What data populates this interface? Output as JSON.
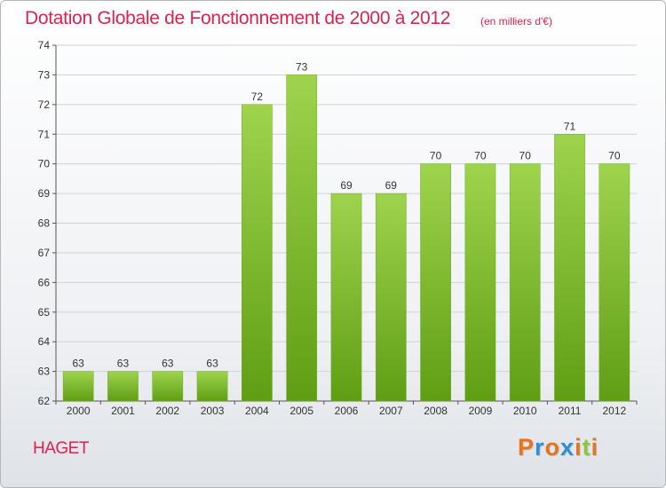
{
  "header": {
    "title": "Dotation Globale de Fonctionnement de 2000 à 2012",
    "unit": "(en milliers d'€)"
  },
  "footer": {
    "commune": "HAGET",
    "logo_letters": [
      "P",
      "r",
      "o",
      "x",
      "i",
      "t",
      "i"
    ],
    "logo_colors": [
      "#e8731c",
      "#2e8fd6",
      "#e8731c",
      "#2e8fd6",
      "#e8731c",
      "#8dc63f",
      "#e8731c"
    ]
  },
  "colors": {
    "title": "#d8244f",
    "bar_top": "#9fd34e",
    "bar_bottom": "#5f9e14",
    "grid": "#cfd3d8",
    "axis": "#555555"
  },
  "chart_data": {
    "type": "bar",
    "title": "Dotation Globale de Fonctionnement de 2000 à 2012",
    "categories": [
      "2000",
      "2001",
      "2002",
      "2003",
      "2004",
      "2005",
      "2006",
      "2007",
      "2008",
      "2009",
      "2010",
      "2011",
      "2012"
    ],
    "values": [
      63,
      63,
      63,
      63,
      72,
      73,
      69,
      69,
      70,
      70,
      70,
      71,
      70
    ],
    "ylim": [
      62,
      74
    ],
    "yticks": [
      62,
      63,
      64,
      65,
      66,
      67,
      68,
      69,
      70,
      71,
      72,
      73,
      74
    ],
    "grid": true,
    "data_labels": true
  }
}
